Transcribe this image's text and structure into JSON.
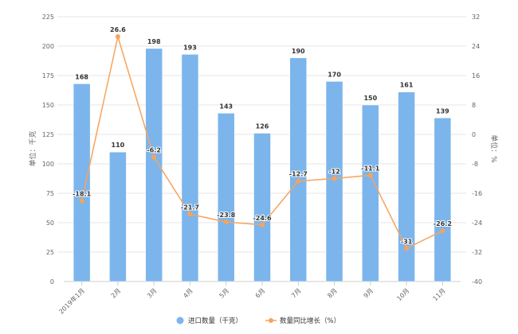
{
  "chart_data": {
    "type": "bar+line",
    "categories": [
      "2019年1月",
      "2月",
      "3月",
      "4月",
      "5月",
      "6月",
      "7月",
      "8月",
      "9月",
      "10月",
      "11月"
    ],
    "series": [
      {
        "name": "进口数量（千克）",
        "type": "bar",
        "axis": "left",
        "color": "#7cb5ec",
        "values": [
          168,
          110,
          198,
          193,
          143,
          126,
          190,
          170,
          150,
          161,
          139
        ]
      },
      {
        "name": "数量同比增长（%）",
        "type": "line",
        "axis": "right",
        "color": "#f7a35c",
        "values": [
          -18.1,
          26.6,
          -6.2,
          -21.7,
          -23.8,
          -24.6,
          -12.7,
          -12,
          -11.1,
          -31,
          -26.2
        ]
      }
    ],
    "ylabel": "单位：千克",
    "y2label": "单位：%",
    "ylim": [
      0,
      225
    ],
    "yticks": [
      0,
      25,
      50,
      75,
      100,
      125,
      150,
      175,
      200,
      225
    ],
    "y2lim": [
      -40,
      32
    ],
    "y2ticks": [
      -40,
      -32,
      -24,
      -16,
      -8,
      0,
      8,
      16,
      24,
      32
    ],
    "grid": true,
    "legend": "bottom"
  }
}
